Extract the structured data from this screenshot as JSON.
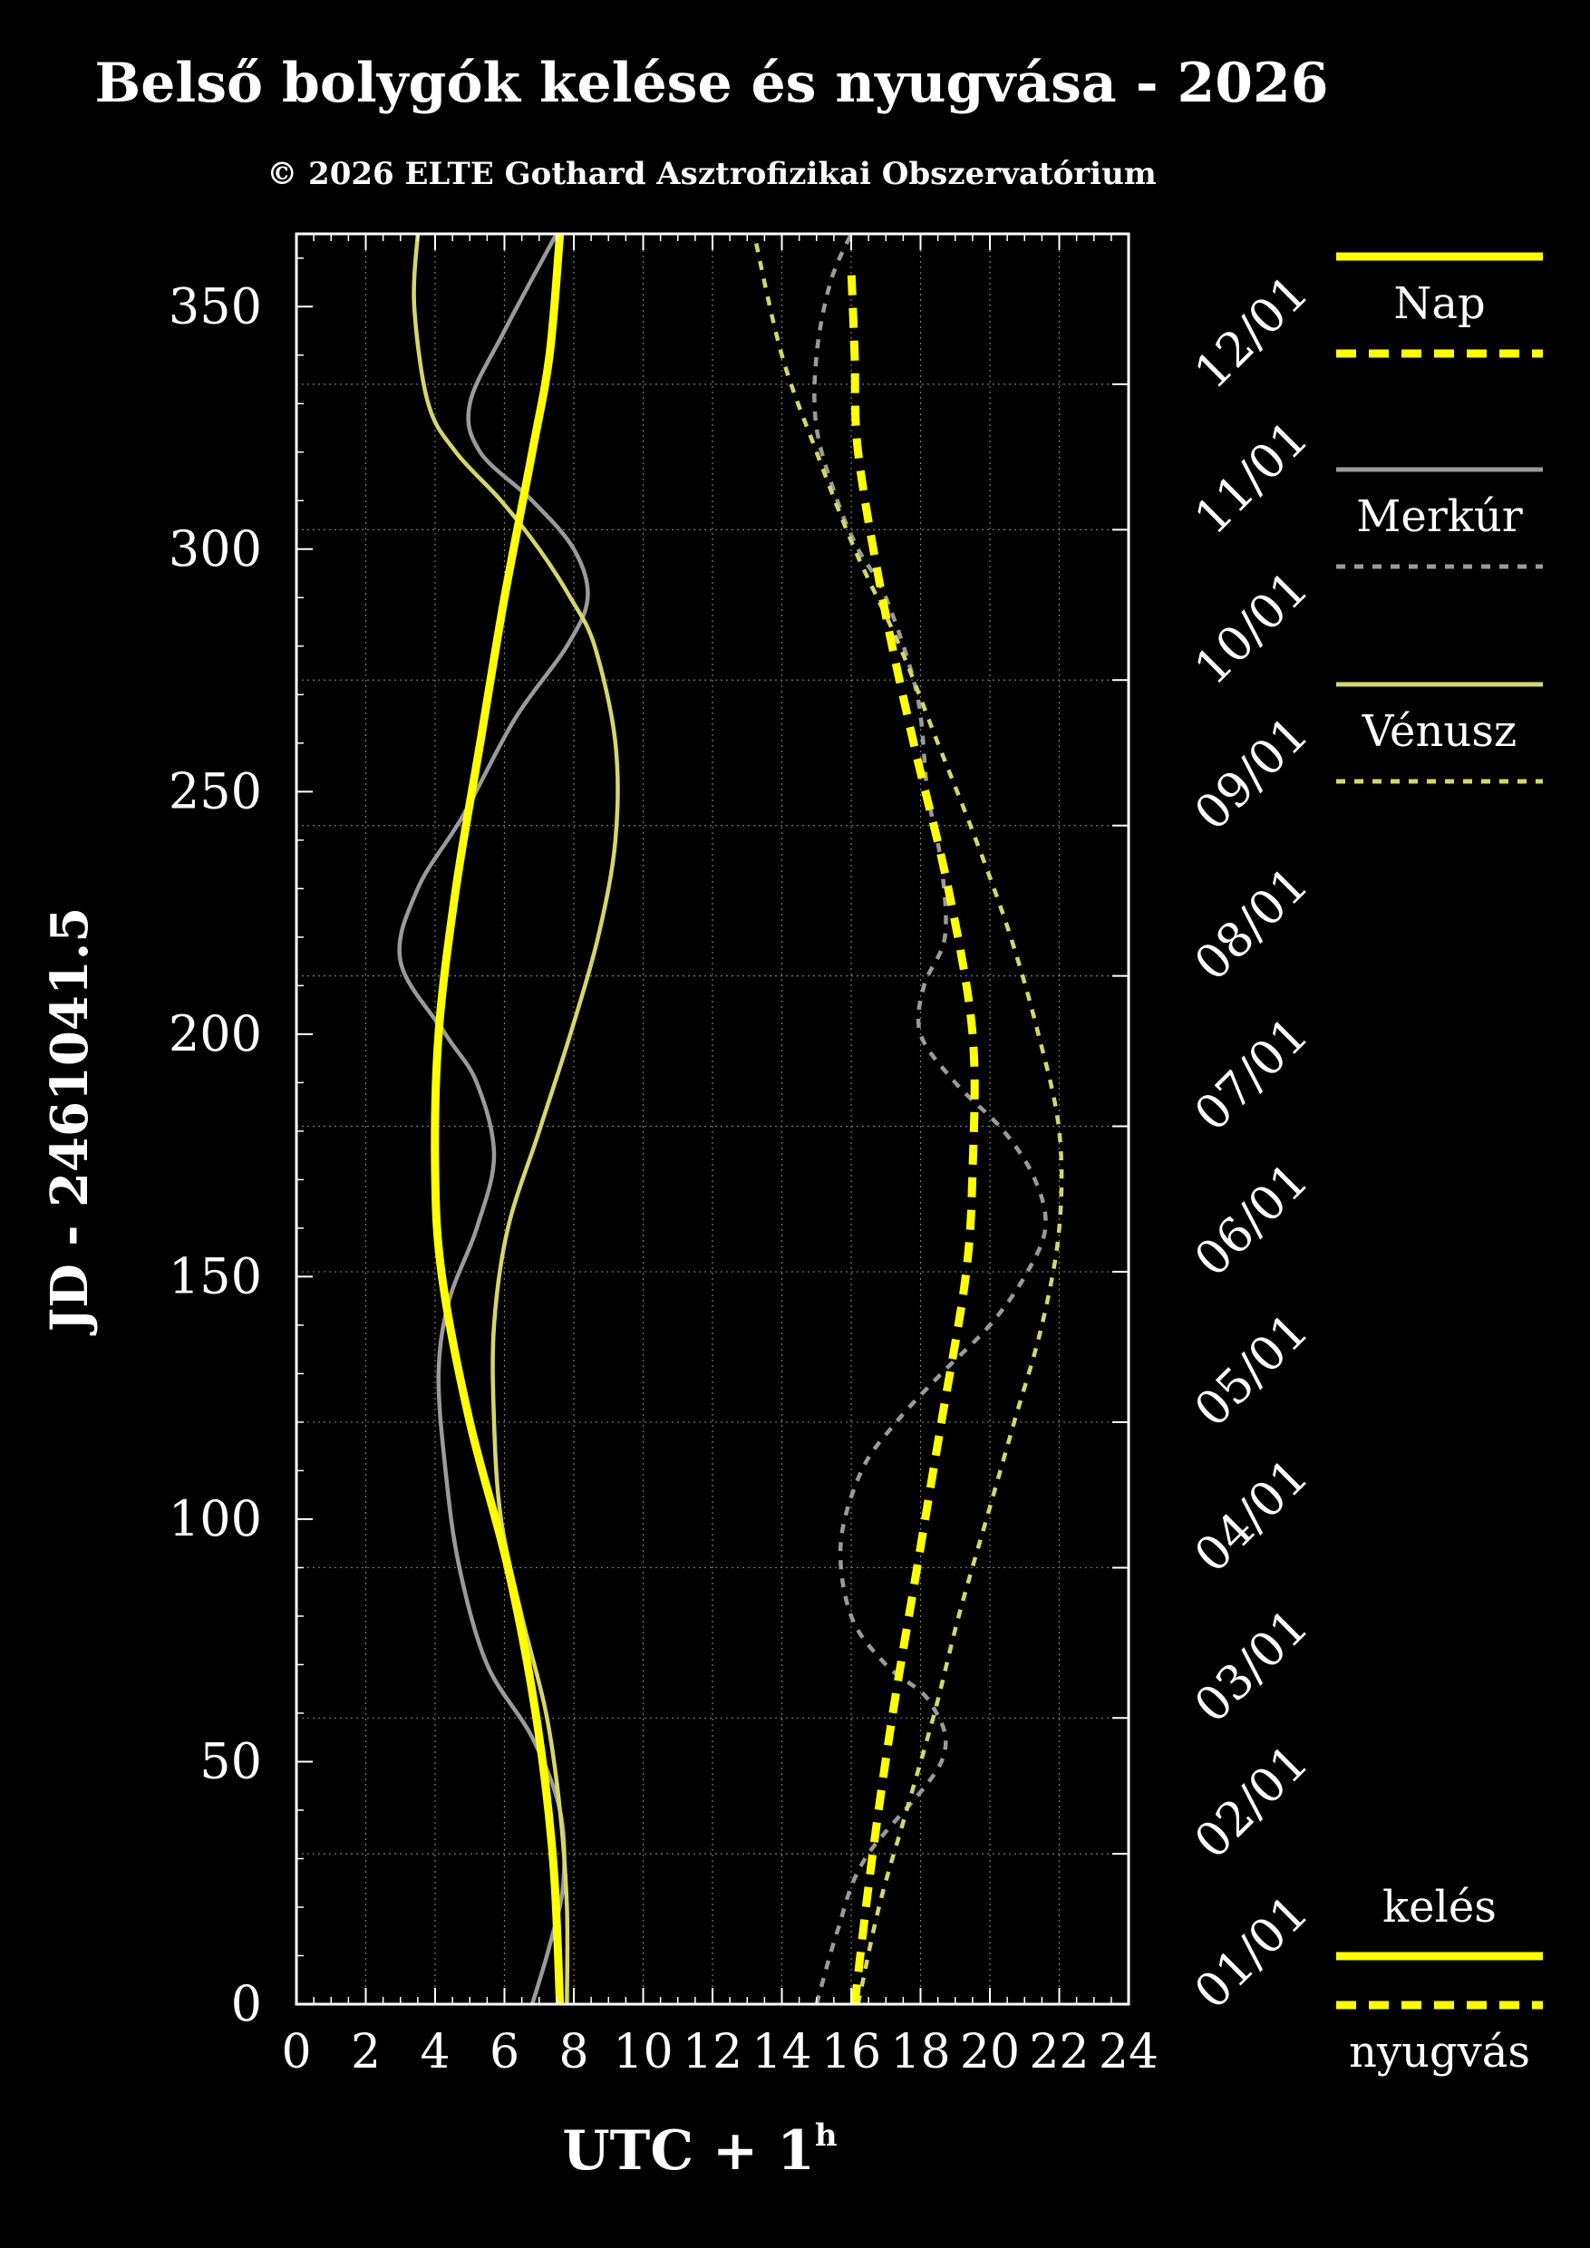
{
  "chart_data": {
    "type": "line",
    "title": "Belső bolygók kelése és nyugvása - 2026",
    "subtitle": "© 2026 ELTE Gothard Asztrofizikai Obszervatórium",
    "xlabel_main": "UTC + 1",
    "xlabel_sup": "h",
    "ylabel": "JD - 2461041.5",
    "xlim": [
      0,
      24
    ],
    "ylim": [
      0,
      365
    ],
    "x_ticks": [
      "0",
      "2",
      "4",
      "6",
      "8",
      "10",
      "12",
      "14",
      "16",
      "18",
      "20",
      "22",
      "24"
    ],
    "y_ticks": [
      "0",
      "50",
      "100",
      "150",
      "200",
      "250",
      "300",
      "350"
    ],
    "month_labels": [
      "01/01",
      "02/01",
      "03/01",
      "04/01",
      "05/01",
      "06/01",
      "07/01",
      "08/01",
      "09/01",
      "10/01",
      "11/01",
      "12/01"
    ],
    "month_days": [
      0,
      31,
      59,
      90,
      120,
      151,
      181,
      212,
      243,
      273,
      304,
      334
    ],
    "grid": true,
    "colors": {
      "nap": "#ffff00",
      "merkur": "#9a9a9a",
      "venusz": "#d6d66a"
    },
    "legend": {
      "planets": [
        "Nap",
        "Merkúr",
        "Vénusz"
      ],
      "rise": "kelés",
      "set": "nyugvás"
    },
    "series": [
      {
        "name": "Nap",
        "kind": "kelés",
        "y": [
          0,
          30,
          60,
          90,
          120,
          150,
          172,
          200,
          230,
          260,
          290,
          320,
          340,
          365
        ],
        "x": [
          7.6,
          7.4,
          6.9,
          6.1,
          5.0,
          4.2,
          4.0,
          4.1,
          4.6,
          5.3,
          6.0,
          6.8,
          7.3,
          7.6
        ]
      },
      {
        "name": "Nap",
        "kind": "nyugvás",
        "y": [
          0,
          30,
          60,
          90,
          120,
          150,
          172,
          200,
          230,
          260,
          290,
          320,
          340,
          358
        ],
        "x": [
          16.1,
          16.6,
          17.2,
          17.9,
          18.6,
          19.3,
          19.5,
          19.5,
          18.8,
          17.8,
          16.9,
          16.2,
          16.1,
          16.0
        ]
      },
      {
        "name": "Merkúr",
        "kind": "kelés",
        "y": [
          0,
          12,
          25,
          40,
          55,
          70,
          90,
          110,
          130,
          145,
          160,
          175,
          190,
          200,
          215,
          230,
          245,
          265,
          280,
          290,
          300,
          310,
          320,
          330,
          345,
          365
        ],
        "x": [
          6.8,
          7.3,
          7.7,
          7.6,
          6.8,
          5.5,
          4.7,
          4.3,
          4.1,
          4.4,
          5.2,
          5.7,
          5.2,
          4.3,
          3.0,
          3.5,
          4.8,
          6.3,
          7.8,
          8.4,
          8.0,
          6.8,
          5.3,
          5.0,
          6.0,
          7.5
        ]
      },
      {
        "name": "Merkúr",
        "kind": "nyugvás",
        "y": [
          0,
          15,
          30,
          50,
          62,
          70,
          80,
          95,
          110,
          120,
          130,
          140,
          150,
          160,
          170,
          180,
          190,
          200,
          210,
          220,
          235,
          250,
          270,
          290,
          300,
          310,
          325,
          340,
          355,
          365
        ],
        "x": [
          15.0,
          15.6,
          16.4,
          18.6,
          18.3,
          17.0,
          16.0,
          15.7,
          16.3,
          17.3,
          18.6,
          20.0,
          21.0,
          21.6,
          21.3,
          20.4,
          19.0,
          18.0,
          18.1,
          18.7,
          18.6,
          18.2,
          17.9,
          17.0,
          16.2,
          15.6,
          15.0,
          15.0,
          15.4,
          16.0
        ]
      },
      {
        "name": "Vénusz",
        "kind": "kelés",
        "y": [
          0,
          20,
          40,
          60,
          80,
          100,
          120,
          140,
          160,
          180,
          200,
          220,
          240,
          260,
          280,
          290,
          300,
          310,
          320,
          330,
          350,
          365
        ],
        "x": [
          7.8,
          7.8,
          7.6,
          7.2,
          6.5,
          5.9,
          5.7,
          5.7,
          6.1,
          7.0,
          7.9,
          8.7,
          9.2,
          9.2,
          8.6,
          7.9,
          7.0,
          5.9,
          4.6,
          3.8,
          3.4,
          3.5
        ]
      },
      {
        "name": "Vénusz",
        "kind": "nyugvás",
        "y": [
          0,
          20,
          40,
          60,
          80,
          100,
          120,
          140,
          160,
          180,
          200,
          220,
          240,
          260,
          280,
          300,
          320,
          340,
          365
        ],
        "x": [
          16.2,
          16.8,
          17.6,
          18.4,
          19.1,
          19.9,
          20.7,
          21.5,
          22.0,
          22.0,
          21.4,
          20.6,
          19.6,
          18.5,
          17.4,
          16.1,
          15.0,
          14.0,
          13.2
        ]
      }
    ]
  }
}
